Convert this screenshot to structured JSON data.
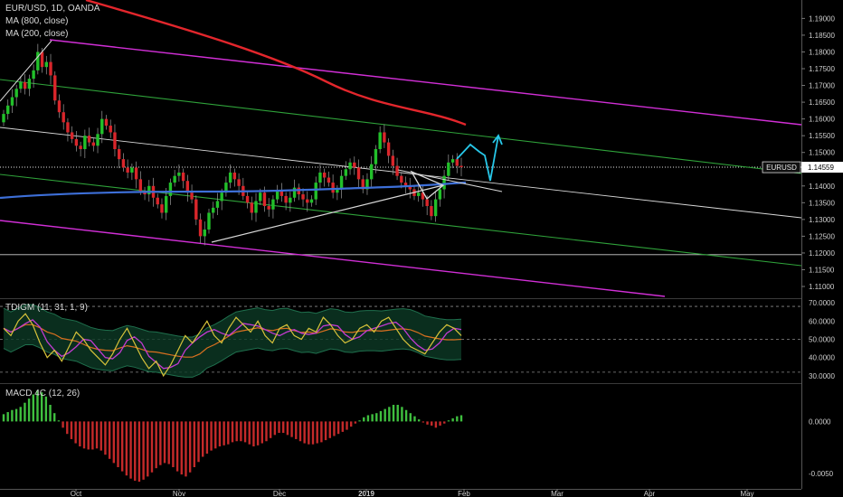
{
  "chart": {
    "symbol_title": "EUR/USD, 1D, OANDA",
    "ma1_label": "MA (800, close)",
    "ma2_label": "MA (200, close)",
    "price_tag_symbol": "EURUSD",
    "price_tag_value": "1.14559",
    "colors": {
      "background": "#000000",
      "up_candle": "#22c02a",
      "down_candle": "#d9262b",
      "ma800": "#e3262c",
      "ma200": "#3d6fd8",
      "channel_outer": "#d12fd6",
      "channel_inner": "#2fa23a",
      "trendline": "#d8d8d8",
      "projection": "#27c7e8",
      "rsi": "#d7c23a",
      "rsi_fast": "#c23ad1",
      "rsi_mid": "#d9701f",
      "band": "#1f6f4d",
      "macd_up": "#3fbf3f",
      "macd_down": "#c42a2a"
    }
  },
  "panels": {
    "tdi_label": "TDIGM (11, 31, 1, 9)",
    "macd_label": "MACD 4C (12, 26)"
  },
  "chart_data": [
    {
      "type": "candlestick",
      "title": "EUR/USD, 1D, OANDA",
      "x_tick_labels": [
        "Oct",
        "Nov",
        "Dec",
        "2019",
        "Feb",
        "Mar",
        "Apr",
        "May"
      ],
      "y_tick_labels": [
        "1.19000",
        "1.18500",
        "1.18000",
        "1.17500",
        "1.17000",
        "1.16500",
        "1.16000",
        "1.15500",
        "1.15000",
        "1.14000",
        "1.13500",
        "1.13000",
        "1.12500",
        "1.12000",
        "1.11500",
        "1.11000"
      ],
      "ylim": [
        1.1065,
        1.1955
      ],
      "last_close": 1.14559,
      "closes_approx": [
        1.1615,
        1.164,
        1.1665,
        1.169,
        1.171,
        1.169,
        1.172,
        1.1745,
        1.18,
        1.1755,
        1.177,
        1.173,
        1.1655,
        1.162,
        1.159,
        1.156,
        1.154,
        1.152,
        1.151,
        1.155,
        1.153,
        1.152,
        1.1555,
        1.16,
        1.158,
        1.156,
        1.151,
        1.148,
        1.1455,
        1.144,
        1.1455,
        1.142,
        1.1385,
        1.1375,
        1.14,
        1.1365,
        1.1345,
        1.132,
        1.137,
        1.141,
        1.143,
        1.144,
        1.1415,
        1.138,
        1.136,
        1.13,
        1.125,
        1.127,
        1.132,
        1.1335,
        1.1355,
        1.138,
        1.141,
        1.144,
        1.142,
        1.14,
        1.137,
        1.135,
        1.132,
        1.1355,
        1.138,
        1.134,
        1.133,
        1.136,
        1.1385,
        1.137,
        1.135,
        1.1365,
        1.1395,
        1.1375,
        1.136,
        1.135,
        1.136,
        1.141,
        1.144,
        1.1425,
        1.141,
        1.138,
        1.139,
        1.143,
        1.145,
        1.147,
        1.1455,
        1.142,
        1.139,
        1.142,
        1.1465,
        1.151,
        1.156,
        1.153,
        1.149,
        1.146,
        1.143,
        1.141,
        1.14,
        1.139,
        1.137,
        1.138,
        1.136,
        1.134,
        1.131,
        1.136,
        1.139,
        1.143,
        1.147,
        1.148,
        1.146,
        1.14559
      ]
    },
    {
      "type": "line",
      "title": "TDIGM (11, 31, 1, 9)",
      "y_tick_labels": [
        "70.0000",
        "60.0000",
        "50.0000",
        "40.0000",
        "30.0000"
      ],
      "ylim": [
        26,
        72
      ],
      "levels": [
        68,
        50,
        32
      ],
      "series": [
        {
          "name": "",
          "values": [
            56,
            52,
            60,
            64,
            58,
            48,
            40,
            44,
            38,
            46,
            54,
            50,
            44,
            40,
            36,
            42,
            50,
            56,
            48,
            40,
            34,
            38,
            30,
            36,
            44,
            52,
            48,
            54,
            60,
            52,
            48,
            56,
            62,
            58,
            54,
            60,
            52,
            48,
            56,
            58,
            52,
            50,
            56,
            54,
            62,
            58,
            52,
            48,
            50,
            56,
            58,
            54,
            60,
            62,
            56,
            50,
            46,
            44,
            42,
            48,
            54,
            58,
            56,
            52
          ]
        }
      ]
    },
    {
      "type": "bar",
      "title": "MACD 4C (12, 26)",
      "y_tick_labels": [
        "0.0000",
        "-0.0050"
      ],
      "ylim": [
        -0.0064,
        0.0036
      ],
      "values": [
        0.0007,
        0.0009,
        0.0011,
        0.0012,
        0.0014,
        0.0018,
        0.0022,
        0.0026,
        0.003,
        0.0028,
        0.0024,
        0.0016,
        0.0008,
        0.0001,
        -0.0006,
        -0.0012,
        -0.0017,
        -0.0021,
        -0.0024,
        -0.0026,
        -0.0027,
        -0.0027,
        -0.0026,
        -0.0028,
        -0.0032,
        -0.0036,
        -0.004,
        -0.0044,
        -0.0048,
        -0.0052,
        -0.0055,
        -0.0057,
        -0.0058,
        -0.0056,
        -0.0053,
        -0.0049,
        -0.0045,
        -0.0042,
        -0.004,
        -0.0041,
        -0.0044,
        -0.0048,
        -0.0051,
        -0.0053,
        -0.0049,
        -0.0044,
        -0.0039,
        -0.0034,
        -0.0031,
        -0.0028,
        -0.0026,
        -0.0024,
        -0.0023,
        -0.0022,
        -0.002,
        -0.0019,
        -0.0019,
        -0.002,
        -0.0022,
        -0.0024,
        -0.0023,
        -0.0021,
        -0.0019,
        -0.0016,
        -0.0013,
        -0.0011,
        -0.0011,
        -0.0013,
        -0.0015,
        -0.0017,
        -0.0019,
        -0.0021,
        -0.0022,
        -0.0022,
        -0.0021,
        -0.002,
        -0.0018,
        -0.0016,
        -0.0014,
        -0.0012,
        -0.001,
        -0.0008,
        -0.0005,
        -0.0002,
        0.0001,
        0.0004,
        0.0006,
        0.0007,
        0.0008,
        0.001,
        0.0012,
        0.0014,
        0.0016,
        0.0016,
        0.0014,
        0.0011,
        0.0008,
        0.0005,
        0.0002,
        -0.0001,
        -0.0003,
        -0.0004,
        -0.0006,
        -0.0004,
        -0.0002,
        0.0001,
        0.0003,
        0.0005,
        0.0006
      ]
    }
  ]
}
